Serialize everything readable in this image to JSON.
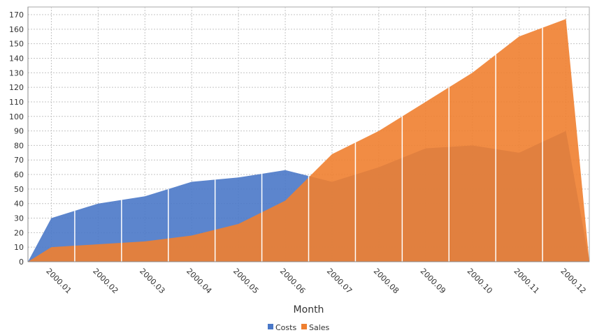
{
  "chart_data": {
    "type": "area",
    "categories": [
      "2000.01",
      "2000.02",
      "2000.03",
      "2000.04",
      "2000.05",
      "2000.06",
      "2000.07",
      "2000.08",
      "2000.09",
      "2000.10",
      "2000.11",
      "2000.12"
    ],
    "series": [
      {
        "name": "Costs",
        "color": "#4a78c8",
        "values": [
          30,
          40,
          45,
          55,
          58,
          63,
          55,
          65,
          78,
          80,
          75,
          90
        ]
      },
      {
        "name": "Sales",
        "color": "#ef7f30",
        "values": [
          10,
          12,
          14,
          18,
          26,
          42,
          74,
          90,
          110,
          130,
          155,
          167
        ]
      }
    ],
    "xlabel": "Month",
    "ylabel": "",
    "ylim": [
      0,
      170
    ],
    "ytick_step": 10,
    "grid": true,
    "legend": "bottom"
  }
}
